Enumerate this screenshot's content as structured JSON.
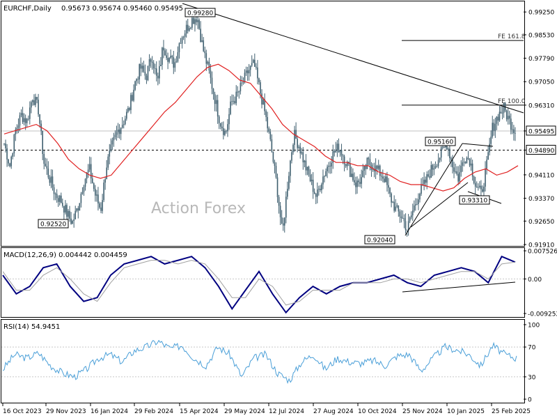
{
  "header": {
    "symbol": "EURCHF,Daily",
    "ohlc": "0.95673 0.95674 0.95460 0.95495"
  },
  "watermark": "Action Forex",
  "colors": {
    "candle": "#3f5f6f",
    "ma": "#e02020",
    "trend": "#000000",
    "macd": "#000080",
    "signal": "#a0a0a0",
    "rsi": "#4a9fd8",
    "grid": "#c8c8c8",
    "price_box": "#ffffff"
  },
  "chart_data": [
    {
      "type": "candlestick",
      "panel": "price",
      "ylim": [
        0.9191,
        0.9954
      ],
      "yticks": [
        "0.99250",
        "0.98530",
        "0.97790",
        "0.97050",
        "0.96310",
        "0.95495",
        "0.94890",
        "0.94110",
        "0.93370",
        "0.92650",
        "0.91910"
      ],
      "current_price": "0.95495",
      "support_level": "0.94890",
      "annotations": [
        {
          "text": "0.99280",
          "value": 0.9928
        },
        {
          "text": "0.92520",
          "value": 0.9252
        },
        {
          "text": "0.95160",
          "value": 0.9516
        },
        {
          "text": "0.93310",
          "value": 0.9331
        },
        {
          "text": "0.92040",
          "value": 0.9204
        }
      ],
      "fib_levels": [
        {
          "label": "FE 161.8",
          "value": 0.9835
        },
        {
          "label": "FE 100.0",
          "value": 0.9631
        }
      ],
      "series_hint": "daily EURCHF candles Oct 2023 - Mar 2025 with 55-day MA",
      "close_path": [
        0.951,
        0.944,
        0.955,
        0.96,
        0.958,
        0.966,
        0.962,
        0.945,
        0.94,
        0.935,
        0.933,
        0.929,
        0.926,
        0.931,
        0.939,
        0.943,
        0.935,
        0.93,
        0.944,
        0.95,
        0.955,
        0.958,
        0.962,
        0.97,
        0.975,
        0.972,
        0.979,
        0.97,
        0.982,
        0.978,
        0.976,
        0.984,
        0.987,
        0.99,
        0.991,
        0.981,
        0.974,
        0.966,
        0.958,
        0.954,
        0.964,
        0.966,
        0.97,
        0.974,
        0.976,
        0.968,
        0.96,
        0.95,
        0.938,
        0.922,
        0.94,
        0.954,
        0.95,
        0.944,
        0.939,
        0.934,
        0.94,
        0.944,
        0.948,
        0.95,
        0.946,
        0.942,
        0.938,
        0.94,
        0.945,
        0.944,
        0.942,
        0.94,
        0.934,
        0.93,
        0.928,
        0.924,
        0.93,
        0.935,
        0.938,
        0.942,
        0.945,
        0.948,
        0.951,
        0.944,
        0.94,
        0.947,
        0.946,
        0.938,
        0.935,
        0.944,
        0.956,
        0.96,
        0.962,
        0.958,
        0.955
      ],
      "ma_path": [
        0.954,
        0.955,
        0.956,
        0.957,
        0.955,
        0.951,
        0.946,
        0.943,
        0.941,
        0.94,
        0.941,
        0.945,
        0.949,
        0.953,
        0.957,
        0.961,
        0.964,
        0.968,
        0.972,
        0.975,
        0.976,
        0.974,
        0.971,
        0.97,
        0.966,
        0.962,
        0.957,
        0.954,
        0.952,
        0.95,
        0.947,
        0.945,
        0.945,
        0.944,
        0.944,
        0.942,
        0.941,
        0.939,
        0.938,
        0.938,
        0.937,
        0.936,
        0.937,
        0.94,
        0.942,
        0.943,
        0.941,
        0.942,
        0.944
      ]
    },
    {
      "type": "line",
      "panel": "macd",
      "title": "MACD(12,26,9) 0.004442 0.004459",
      "ylim": [
        -0.00925,
        0.00753
      ],
      "yticks": [
        "0.007526",
        "0.00",
        "-0.009252"
      ],
      "series": [
        {
          "name": "MACD",
          "values": [
            0.001,
            -0.004,
            -0.002,
            0.003,
            0.004,
            -0.002,
            -0.006,
            -0.005,
            0.001,
            0.004,
            0.005,
            0.006,
            0.004,
            0.005,
            0.006,
            0.003,
            -0.002,
            -0.008,
            -0.003,
            0.002,
            -0.004,
            -0.009,
            -0.005,
            -0.002,
            -0.004,
            -0.002,
            -0.001,
            -0.001,
            0.0,
            0.001,
            -0.001,
            -0.002,
            0.001,
            0.002,
            0.003,
            0.002,
            -0.001,
            0.006,
            0.0045
          ]
        },
        {
          "name": "Signal",
          "values": [
            0.002,
            -0.003,
            -0.003,
            0.001,
            0.003,
            0.0,
            -0.004,
            -0.006,
            -0.001,
            0.003,
            0.004,
            0.005,
            0.005,
            0.004,
            0.005,
            0.004,
            0.0,
            -0.005,
            -0.005,
            0.0,
            -0.002,
            -0.007,
            -0.006,
            -0.003,
            -0.003,
            -0.003,
            -0.001,
            -0.001,
            -0.001,
            0.0,
            0.0,
            -0.001,
            0.0,
            0.001,
            0.002,
            0.002,
            0.0,
            0.004,
            0.0045
          ]
        }
      ]
    },
    {
      "type": "line",
      "panel": "rsi",
      "title": "RSI(14) 54.9451",
      "ylim": [
        0,
        100
      ],
      "yticks": [
        "100",
        "70",
        "30",
        "0"
      ],
      "series": [
        {
          "name": "RSI",
          "values": [
            40,
            60,
            55,
            62,
            45,
            35,
            30,
            40,
            55,
            60,
            50,
            65,
            70,
            78,
            68,
            72,
            55,
            45,
            70,
            60,
            30,
            55,
            60,
            35,
            25,
            50,
            60,
            40,
            55,
            50,
            48,
            52,
            45,
            58,
            60,
            38,
            55,
            70,
            66,
            60,
            45,
            72,
            60,
            55
          ]
        }
      ]
    }
  ],
  "x_axis": {
    "labels": [
      "16 Oct 2023",
      "29 Nov 2023",
      "16 Jan 2024",
      "29 Feb 2024",
      "15 Apr 2024",
      "29 May 2024",
      "12 Jul 2024",
      "27 Aug 2024",
      "10 Oct 2024",
      "25 Nov 2024",
      "10 Jan 2025",
      "25 Feb 2025"
    ]
  }
}
